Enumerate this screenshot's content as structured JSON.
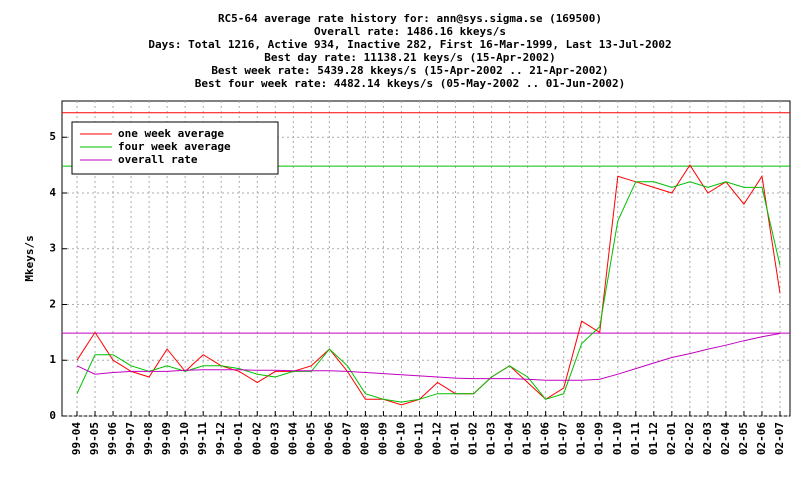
{
  "chart_data": {
    "type": "line",
    "title": [
      "RC5-64 average rate history for: ann@sys.sigma.se (169500)",
      "Overall rate: 1486.16 kkeys/s",
      "Days: Total 1216,  Active 934, Inactive 282, First 16-Mar-1999, Last 13-Jul-2002",
      "Best day rate: 11138.21 keys/s (15-Apr-2002)",
      "Best week rate: 5439.28 kkeys/s (15-Apr-2002 .. 21-Apr-2002)",
      "Best four week rate: 4482.14 kkeys/s (05-May-2002 .. 01-Jun-2002)"
    ],
    "ylabel": "Mkeys/s",
    "categories": [
      "99-04",
      "99-05",
      "99-06",
      "99-07",
      "99-08",
      "99-09",
      "99-10",
      "99-11",
      "99-12",
      "00-01",
      "00-02",
      "00-03",
      "00-04",
      "00-05",
      "00-06",
      "00-07",
      "00-08",
      "00-09",
      "00-10",
      "00-11",
      "00-12",
      "01-01",
      "01-02",
      "01-03",
      "01-04",
      "01-05",
      "01-06",
      "01-07",
      "01-08",
      "01-09",
      "01-10",
      "01-11",
      "01-12",
      "02-01",
      "02-02",
      "02-03",
      "02-04",
      "02-05",
      "02-06",
      "02-07"
    ],
    "series": [
      {
        "name": "one week average",
        "color": "#ff0000",
        "values": [
          1.0,
          1.5,
          1.0,
          0.8,
          0.7,
          1.2,
          0.8,
          1.1,
          0.9,
          0.8,
          0.6,
          0.8,
          0.8,
          0.9,
          1.2,
          0.8,
          0.3,
          0.3,
          0.2,
          0.3,
          0.6,
          0.4,
          0.4,
          0.7,
          0.9,
          0.6,
          0.3,
          0.5,
          1.7,
          1.5,
          4.3,
          4.2,
          4.1,
          4.0,
          4.5,
          4.0,
          4.2,
          3.8,
          4.3,
          2.2
        ]
      },
      {
        "name": "four week average",
        "color": "#00c000",
        "values": [
          0.4,
          1.1,
          1.1,
          0.9,
          0.8,
          0.9,
          0.8,
          0.9,
          0.9,
          0.85,
          0.75,
          0.7,
          0.8,
          0.8,
          1.2,
          0.9,
          0.4,
          0.3,
          0.25,
          0.3,
          0.4,
          0.4,
          0.4,
          0.7,
          0.9,
          0.7,
          0.3,
          0.4,
          1.3,
          1.6,
          3.5,
          4.2,
          4.2,
          4.1,
          4.2,
          4.1,
          4.2,
          4.1,
          4.1,
          2.7
        ]
      },
      {
        "name": "overall rate",
        "color": "#c000c0",
        "values": [
          0.9,
          0.75,
          0.78,
          0.8,
          0.8,
          0.8,
          0.82,
          0.83,
          0.83,
          0.83,
          0.82,
          0.82,
          0.81,
          0.81,
          0.81,
          0.8,
          0.78,
          0.76,
          0.74,
          0.72,
          0.7,
          0.68,
          0.67,
          0.67,
          0.67,
          0.66,
          0.64,
          0.64,
          0.64,
          0.66,
          0.75,
          0.85,
          0.95,
          1.05,
          1.12,
          1.2,
          1.27,
          1.35,
          1.42,
          1.48
        ]
      }
    ],
    "hlines": [
      {
        "value": 5.43928,
        "color": "#ff0000"
      },
      {
        "value": 4.48214,
        "color": "#00c000"
      },
      {
        "value": 1.48616,
        "color": "#c000c0"
      }
    ],
    "ylim": [
      0,
      5.65
    ],
    "yticks": [
      0,
      1,
      2,
      3,
      4,
      5
    ],
    "grid": true,
    "legend": "upper left"
  }
}
